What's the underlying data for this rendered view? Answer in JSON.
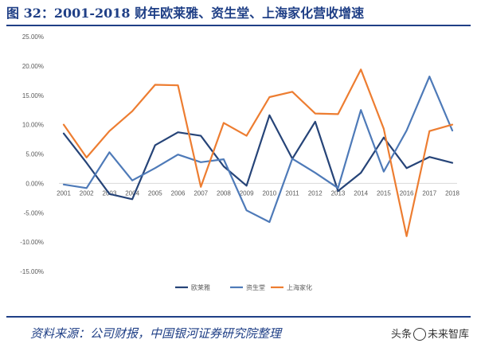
{
  "figure": {
    "title": "图 32：2001-2018 财年欧莱雅、资生堂、上海家化营收增速",
    "source": "资料来源：公司财报，中国银河证券研究院整理",
    "watermark_prefix": "头条",
    "watermark_suffix": "未来智库"
  },
  "colors": {
    "frame": "#1f3f86",
    "loreal": "#264478",
    "shiseido": "#4e7ab8",
    "jahwa": "#ed7d31"
  },
  "chart_data": {
    "type": "line",
    "x": [
      "2001",
      "2002",
      "2003",
      "2004",
      "2005",
      "2006",
      "2007",
      "2008",
      "2009",
      "2010",
      "2011",
      "2012",
      "2013",
      "2014",
      "2015",
      "2016",
      "2017",
      "2018"
    ],
    "ylim": [
      -0.15,
      0.25
    ],
    "yticks": [
      -0.15,
      -0.1,
      -0.05,
      0.0,
      0.05,
      0.1,
      0.15,
      0.2,
      0.25
    ],
    "ytick_labels": [
      "-15.00%",
      "-10.00%",
      "-5.00%",
      "0.00%",
      "5.00%",
      "10.00%",
      "15.00%",
      "20.00%",
      "25.00%"
    ],
    "grid": false,
    "legend_position": "bottom",
    "series": [
      {
        "name": "欧莱雅",
        "color": "#264478",
        "values": [
          0.085,
          0.035,
          -0.018,
          -0.027,
          0.065,
          0.087,
          0.081,
          0.029,
          -0.004,
          0.116,
          0.042,
          0.105,
          -0.013,
          0.018,
          0.078,
          0.026,
          0.045,
          0.035
        ]
      },
      {
        "name": "资生堂",
        "color": "#4e7ab8",
        "values": [
          -0.002,
          -0.008,
          0.053,
          0.005,
          0.026,
          0.049,
          0.036,
          0.041,
          -0.046,
          -0.066,
          0.042,
          0.018,
          -0.008,
          0.125,
          0.02,
          0.09,
          0.182,
          0.09
        ]
      },
      {
        "name": "上海家化",
        "color": "#ed7d31",
        "values": [
          0.1,
          0.044,
          0.089,
          0.123,
          0.168,
          0.167,
          -0.006,
          0.103,
          0.081,
          0.147,
          0.156,
          0.119,
          0.118,
          0.194,
          0.093,
          -0.09,
          0.089,
          0.1
        ]
      }
    ]
  }
}
